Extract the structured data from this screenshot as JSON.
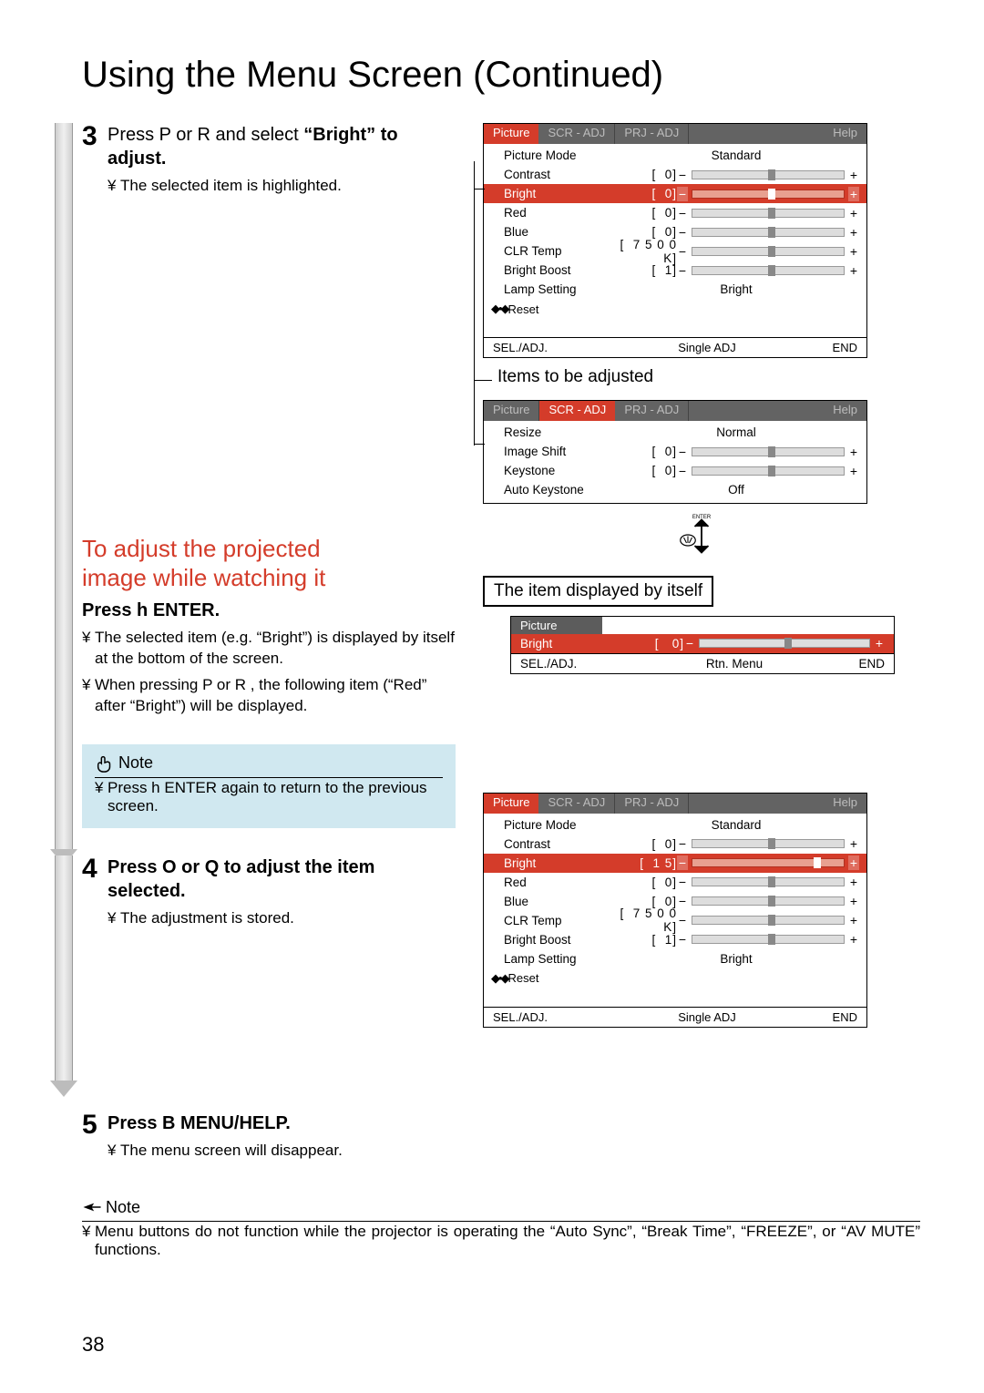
{
  "page": {
    "title": "Using the Menu Screen (Continued)",
    "page_number": "38"
  },
  "colors": {
    "accent_red": "#d43c2a",
    "tab_gray": "#636363",
    "note_bg": "#d0e8f0",
    "slider_bg": "#dddddd",
    "slider_border": "#999999",
    "handle": "#888888"
  },
  "step3": {
    "num": "3",
    "instr_a": "Press  P  or  R  and select  ",
    "instr_b": "“Bright”",
    "instr_c": " to adjust.",
    "sub_bullet": "¥",
    "sub": "The selected item is highlighted."
  },
  "adjust_heading": {
    "line1": "To adjust the projected",
    "line2": "image while watching it"
  },
  "adjust_instr": "Press  h   ENTER.",
  "adjust_sub1_bullet": "¥",
  "adjust_sub1": "The selected item (e.g.  “Bright”)  is displayed by itself at the bottom of the screen.",
  "adjust_sub2_bullet": "¥",
  "adjust_sub2": "When pressing P  or R , the following item (“Red” after “Bright”) will be displayed.",
  "note1": {
    "title": "Note",
    "bullet": "¥",
    "text": "Press h   ENTER again to return to the previous screen."
  },
  "step4": {
    "num": "4",
    "instr": "Press  O  or  Q  to adjust the item selected.",
    "sub_bullet": "¥",
    "sub": "The adjustment is stored."
  },
  "step5": {
    "num": "5",
    "instr": "Press  B   MENU/HELP.",
    "sub_bullet": "¥",
    "sub": "The menu screen will disappear."
  },
  "note2": {
    "title": "Note",
    "bullet": "¥",
    "text": "Menu buttons do not function while the projector is operating the “Auto Sync”, “Break Time”, “FREEZE”, or “AV MUTE” functions."
  },
  "menu_picture_1": {
    "tabs": [
      "Picture",
      "SCR - ADJ",
      "PRJ - ADJ",
      "Help"
    ],
    "active_tab_index": 0,
    "rows": [
      {
        "name": "Picture Mode",
        "text": "Standard"
      },
      {
        "name": "Contrast",
        "val": "0",
        "handle_pct": 50
      },
      {
        "name": "Bright",
        "val": "0",
        "handle_pct": 50,
        "highlight": true
      },
      {
        "name": "Red",
        "val": "0",
        "handle_pct": 50
      },
      {
        "name": "Blue",
        "val": "0",
        "handle_pct": 50
      },
      {
        "name": "CLR Temp",
        "val": "7 5 0 0 K",
        "handle_pct": 50
      },
      {
        "name": "Bright Boost",
        "val": "1",
        "handle_pct": 50
      },
      {
        "name": "Lamp Setting",
        "text": "Bright"
      }
    ],
    "reset": "Reset",
    "footer": {
      "l": "SEL./ADJ.",
      "c": "Single ADJ",
      "r": "END"
    }
  },
  "items_label": "Items to be adjusted",
  "menu_scr": {
    "tabs": [
      "Picture",
      "SCR - ADJ",
      "PRJ - ADJ",
      "Help"
    ],
    "active_tab_index": 1,
    "rows": [
      {
        "name": "Resize",
        "text": "Normal"
      },
      {
        "name": "Image Shift",
        "val": "0",
        "handle_pct": 50
      },
      {
        "name": "Keystone",
        "val": "0",
        "handle_pct": 50
      },
      {
        "name": "Auto Keystone",
        "text": "Off"
      }
    ]
  },
  "item_box_label": "The item displayed by itself",
  "enter_label": "ENTER",
  "single_menu": {
    "tab": "Picture",
    "row": {
      "name": "Bright",
      "val": "0",
      "handle_pct": 50
    },
    "footer": {
      "l": "SEL./ADJ.",
      "c": "Rtn. Menu",
      "r": "END"
    }
  },
  "menu_picture_2": {
    "tabs": [
      "Picture",
      "SCR - ADJ",
      "PRJ - ADJ",
      "Help"
    ],
    "active_tab_index": 0,
    "rows": [
      {
        "name": "Picture Mode",
        "text": "Standard"
      },
      {
        "name": "Contrast",
        "val": "0",
        "handle_pct": 50
      },
      {
        "name": "Bright",
        "val": "1 5",
        "handle_pct": 80,
        "highlight": true
      },
      {
        "name": "Red",
        "val": "0",
        "handle_pct": 50
      },
      {
        "name": "Blue",
        "val": "0",
        "handle_pct": 50
      },
      {
        "name": "CLR Temp",
        "val": "7 5 0 0 K",
        "handle_pct": 50
      },
      {
        "name": "Bright Boost",
        "val": "1",
        "handle_pct": 50
      },
      {
        "name": "Lamp Setting",
        "text": "Bright"
      }
    ],
    "reset": "Reset",
    "footer": {
      "l": "SEL./ADJ.",
      "c": "Single ADJ",
      "r": "END"
    }
  }
}
